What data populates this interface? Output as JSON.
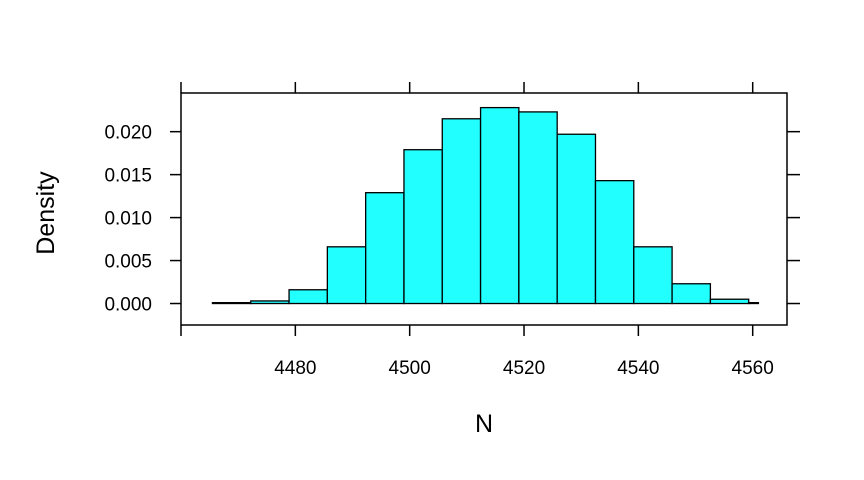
{
  "chart_data": {
    "type": "bar",
    "subtype": "histogram",
    "xlabel": "N",
    "ylabel": "Density",
    "xlim": [
      4460,
      4566
    ],
    "ylim": [
      -0.0025,
      0.0245
    ],
    "x_ticks": [
      4480,
      4500,
      4520,
      4540,
      4560
    ],
    "y_ticks": [
      0.0,
      0.005,
      0.01,
      0.015,
      0.02
    ],
    "y_tick_labels": [
      "0.000",
      "0.005",
      "0.010",
      "0.015",
      "0.020"
    ],
    "bin_edges": [
      4465.5,
      4472.2,
      4478.9,
      4485.6,
      4492.3,
      4499.0,
      4505.7,
      4512.4,
      4519.1,
      4525.8,
      4532.5,
      4539.2,
      4545.9,
      4552.6,
      4559.3,
      4561.0
    ],
    "values": [
      0.0001,
      0.0003,
      0.0016,
      0.0066,
      0.0129,
      0.0179,
      0.0215,
      0.0228,
      0.0223,
      0.0197,
      0.0143,
      0.0066,
      0.0023,
      0.0005,
      0.0001
    ],
    "bar_color": "#00FFFF",
    "grid": false,
    "legend": "none"
  }
}
